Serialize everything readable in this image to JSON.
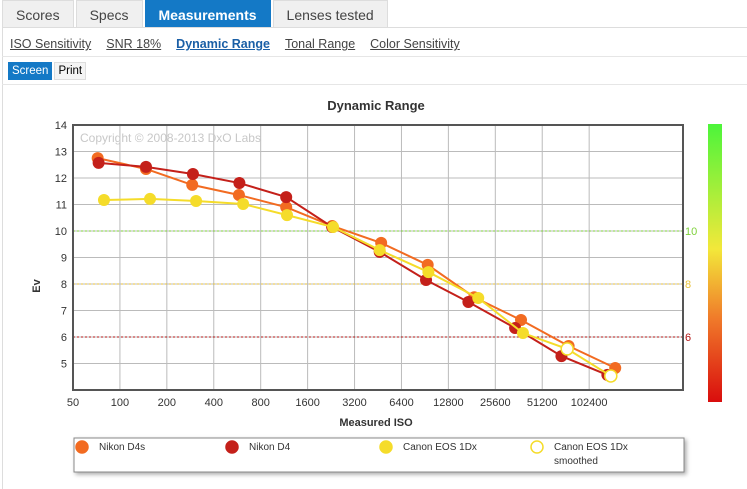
{
  "tabs": [
    "Scores",
    "Specs",
    "Measurements",
    "Lenses tested"
  ],
  "active_tab": "Measurements",
  "sublinks": [
    "ISO Sensitivity",
    "SNR 18%",
    "Dynamic Range",
    "Tonal Range",
    "Color Sensitivity"
  ],
  "modes": [
    "Screen",
    "Print"
  ],
  "chart_data": {
    "type": "line",
    "title": "Dynamic Range",
    "xlabel": "Measured ISO",
    "ylabel": "Ev",
    "watermark": "Copyright © 2008-2013 DxO Labs",
    "x_scale": "log2",
    "xlim": [
      50,
      409600
    ],
    "ylim": [
      4,
      14
    ],
    "x_ticks": [
      "50",
      "100",
      "200",
      "400",
      "800",
      "1600",
      "3200",
      "6400",
      "12800",
      "25600",
      "51200",
      "102400"
    ],
    "y_ticks": [
      "5",
      "6",
      "7",
      "8",
      "9",
      "10",
      "11",
      "12",
      "13",
      "14"
    ],
    "reference_lines": [
      {
        "value": 10,
        "label": "10",
        "color": "#7ed13a"
      },
      {
        "value": 8,
        "label": "8",
        "color": "#e8c23a"
      },
      {
        "value": 6,
        "label": "6",
        "color": "#b31515"
      }
    ],
    "series": [
      {
        "name": "Nikon D4s",
        "color": "#f26b21",
        "x": [
          72,
          147,
          291,
          580,
          1166,
          2299,
          4742,
          9430,
          18750,
          37430,
          75600,
          150500
        ],
        "y": [
          12.75,
          12.34,
          11.74,
          11.36,
          10.9,
          10.19,
          9.55,
          8.72,
          7.5,
          6.64,
          5.66,
          4.83
        ]
      },
      {
        "name": "Nikon D4",
        "color": "#c4201a",
        "x": [
          73,
          147,
          294,
          584,
          1166,
          2299,
          4640,
          9200,
          17200,
          34300,
          68000,
          134000
        ],
        "y": [
          12.57,
          12.42,
          12.15,
          11.81,
          11.28,
          10.15,
          9.21,
          8.15,
          7.32,
          6.34,
          5.28,
          4.57
        ]
      },
      {
        "name": "Canon EOS 1Dx",
        "color": "#f5dc2a",
        "x": [
          79,
          156,
          308,
          617,
          1180,
          2330,
          4640,
          9530,
          19900,
          38500,
          74000,
          141000
        ],
        "y": [
          11.17,
          11.21,
          11.13,
          11.02,
          10.6,
          10.15,
          9.28,
          8.45,
          7.47,
          6.15,
          5.55,
          4.53
        ],
        "hollow_from": 10
      }
    ],
    "legend": [
      "Nikon D4s",
      "Nikon D4",
      "Canon EOS 1Dx",
      "Canon EOS 1Dx smoothed"
    ],
    "legend_placement": "bottom"
  }
}
